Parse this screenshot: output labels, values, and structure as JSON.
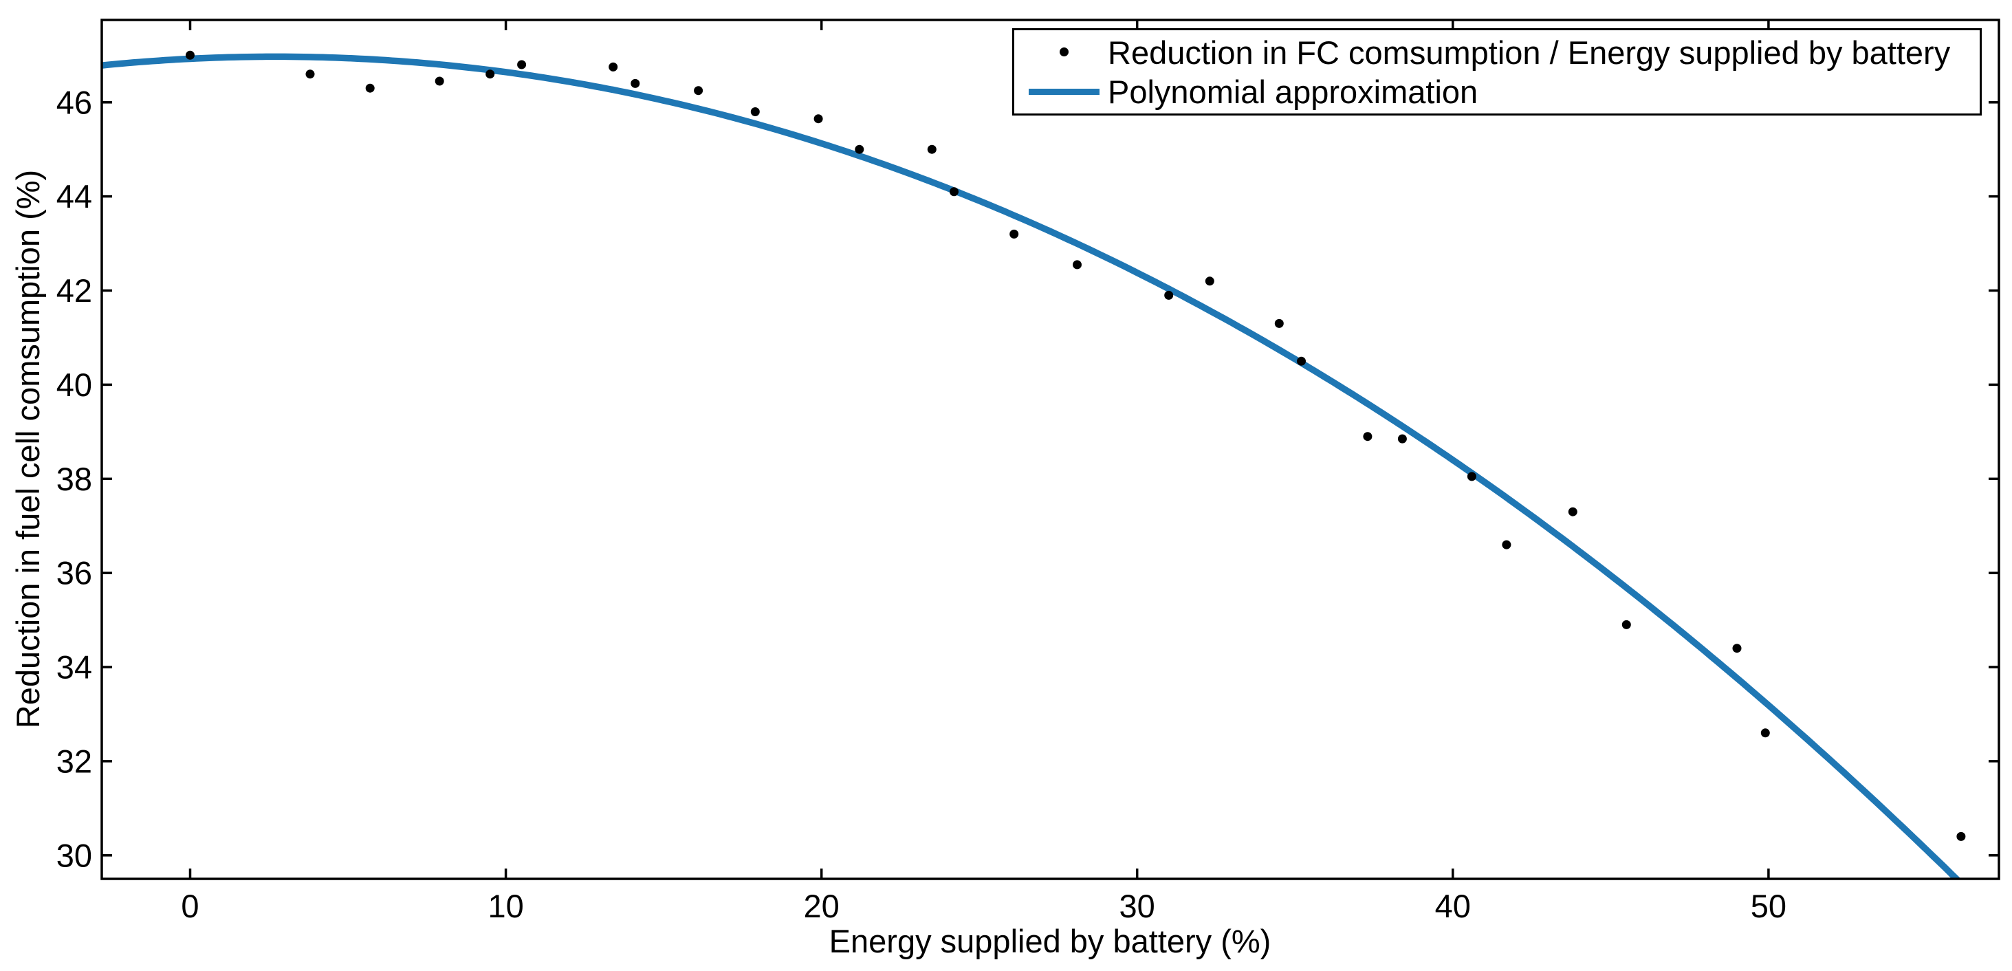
{
  "chart_data": {
    "type": "scatter",
    "title": "",
    "xlabel": "Energy supplied by battery (%)",
    "ylabel": "Reduction in fuel cell comsumption (%)",
    "xlim": [
      -2.8,
      57.3
    ],
    "ylim": [
      29.5,
      47.75
    ],
    "xticks": [
      0,
      10,
      20,
      30,
      40,
      50
    ],
    "yticks": [
      30,
      32,
      34,
      36,
      38,
      40,
      42,
      44,
      46
    ],
    "grid": false,
    "box": true,
    "legend_position": "top-right",
    "series": [
      {
        "name": "Reduction in FC comsumption / Energy supplied by battery",
        "type": "scatter",
        "marker": "dot",
        "color": "#000000",
        "points": [
          [
            0.0,
            47.0
          ],
          [
            3.8,
            46.6
          ],
          [
            5.7,
            46.3
          ],
          [
            7.9,
            46.45
          ],
          [
            9.5,
            46.6
          ],
          [
            10.5,
            46.8
          ],
          [
            13.4,
            46.75
          ],
          [
            14.1,
            46.4
          ],
          [
            16.1,
            46.25
          ],
          [
            17.9,
            45.8
          ],
          [
            19.9,
            45.65
          ],
          [
            21.2,
            45.0
          ],
          [
            23.5,
            45.0
          ],
          [
            24.2,
            44.1
          ],
          [
            26.1,
            43.2
          ],
          [
            28.1,
            42.55
          ],
          [
            31.0,
            41.9
          ],
          [
            32.3,
            42.2
          ],
          [
            34.5,
            41.3
          ],
          [
            35.2,
            40.5
          ],
          [
            37.3,
            38.9
          ],
          [
            38.4,
            38.85
          ],
          [
            40.6,
            38.05
          ],
          [
            41.7,
            36.6
          ],
          [
            43.8,
            37.3
          ],
          [
            45.5,
            34.9
          ],
          [
            49.0,
            34.4
          ],
          [
            49.9,
            32.6
          ],
          [
            56.1,
            30.4
          ]
        ]
      },
      {
        "name": "Polynomial approximation",
        "type": "line",
        "color": "#1f77b4",
        "polynomial": {
          "form": "y = peak_y + a*(x - peak_x)^2",
          "peak_x": 2.7,
          "peak_y": 46.97,
          "a": -0.00616
        }
      }
    ]
  },
  "colors": {
    "axis": "#000000",
    "background": "#ffffff",
    "tick_label": "#000000",
    "curve": "#1f77b4",
    "marker": "#000000"
  }
}
